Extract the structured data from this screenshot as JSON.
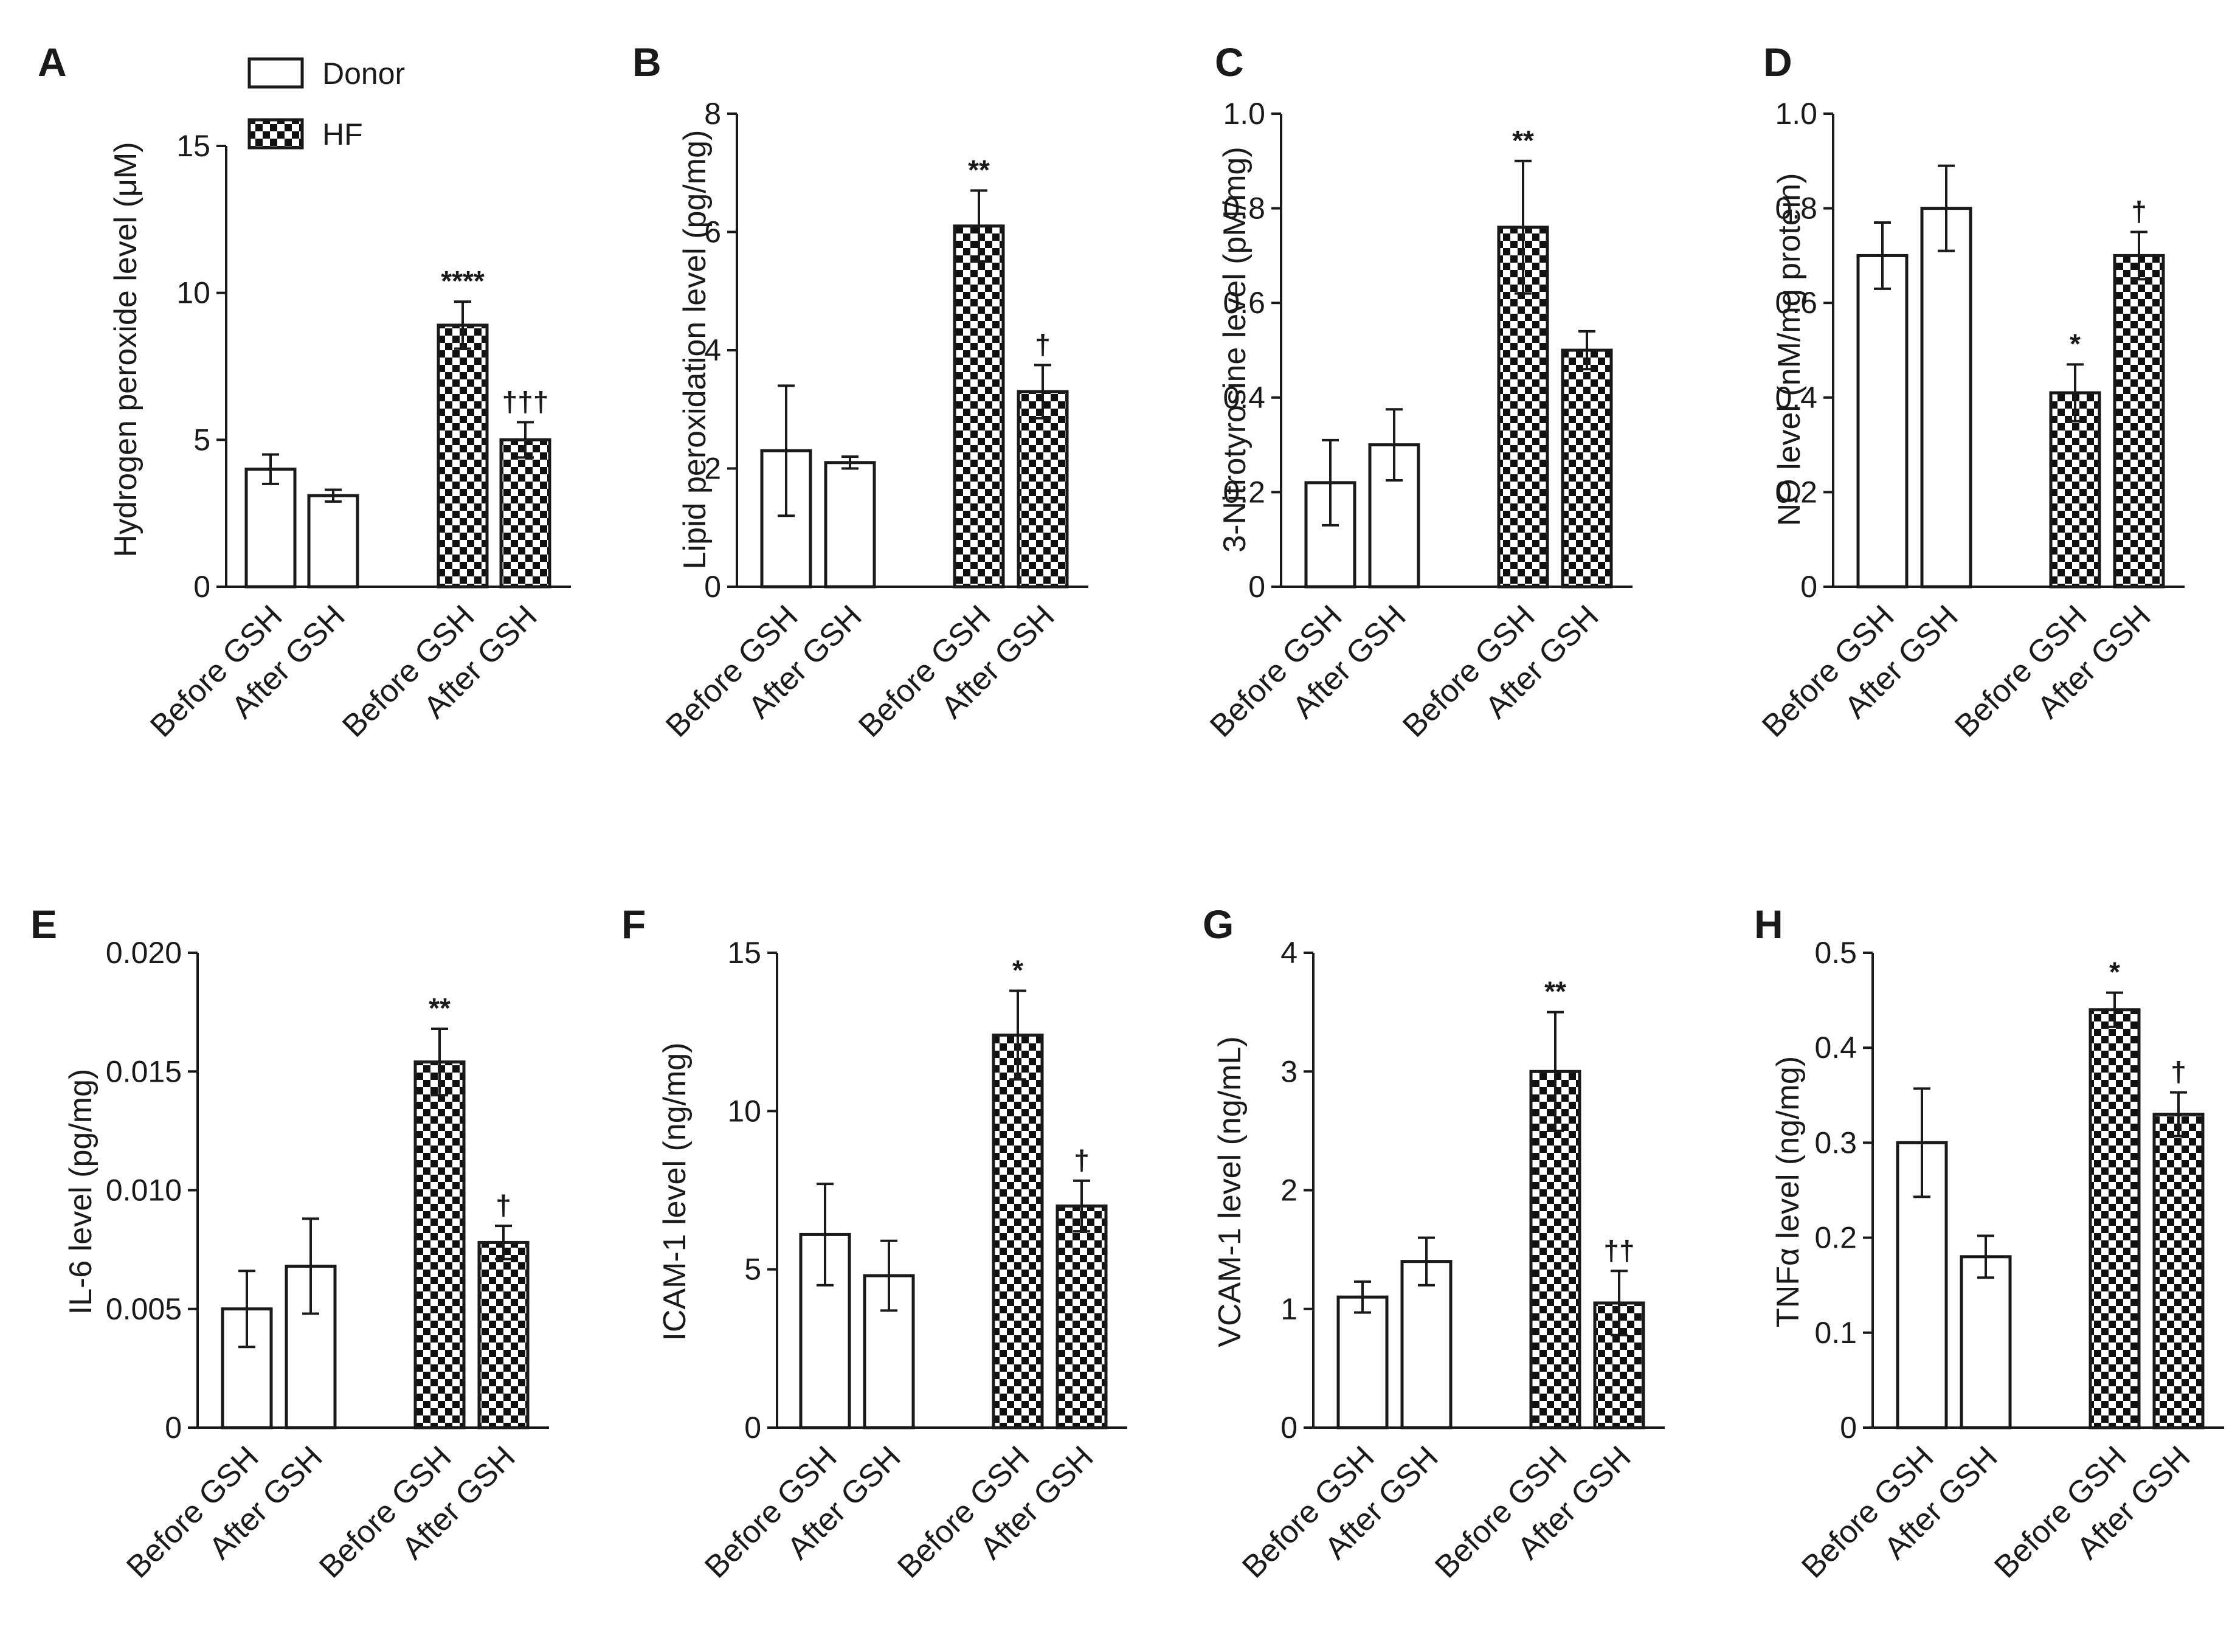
{
  "colors": {
    "donor_fill": "#ffffff",
    "hf_checker_dark": "#111111",
    "hf_checker_light": "#ffffff",
    "ink": "#1a1a1a"
  },
  "legend": {
    "donor_label": "Donor",
    "hf_label": "HF"
  },
  "chart_data": [
    {
      "panel": "A",
      "type": "bar",
      "ylabel": "Hydrogen peroxide level (μM)",
      "ylim": [
        0,
        15
      ],
      "yticks": [
        "0",
        "5",
        "10",
        "15"
      ],
      "categories": [
        "Before GSH",
        "After GSH",
        "Before GSH",
        "After GSH"
      ],
      "groups": [
        "Donor",
        "Donor",
        "HF",
        "HF"
      ],
      "values": [
        4.0,
        3.1,
        8.9,
        5.0
      ],
      "errors": [
        0.5,
        0.2,
        0.8,
        0.6
      ],
      "annotations": [
        "",
        "",
        "****",
        "†††"
      ]
    },
    {
      "panel": "B",
      "type": "bar",
      "ylabel": "Lipid peroxidation level (pg/mg)",
      "ylim": [
        0,
        8
      ],
      "yticks": [
        "0",
        "2",
        "4",
        "6",
        "8"
      ],
      "categories": [
        "Before GSH",
        "After GSH",
        "Before GSH",
        "After GSH"
      ],
      "groups": [
        "Donor",
        "Donor",
        "HF",
        "HF"
      ],
      "values": [
        2.3,
        2.1,
        6.1,
        3.3
      ],
      "errors": [
        1.1,
        0.1,
        0.6,
        0.45
      ],
      "annotations": [
        "",
        "",
        "**",
        "†"
      ]
    },
    {
      "panel": "C",
      "type": "bar",
      "ylabel": "3-Nitrotyrosine level (pM/mg)",
      "ylim": [
        0,
        1.0
      ],
      "yticks": [
        "0",
        "0.2",
        "0.4",
        "0.6",
        "0.8",
        "1.0"
      ],
      "categories": [
        "Before GSH",
        "After GSH",
        "Before GSH",
        "After GSH"
      ],
      "groups": [
        "Donor",
        "Donor",
        "HF",
        "HF"
      ],
      "values": [
        0.22,
        0.3,
        0.76,
        0.5
      ],
      "errors": [
        0.09,
        0.075,
        0.14,
        0.04
      ],
      "annotations": [
        "",
        "",
        "**",
        ""
      ]
    },
    {
      "panel": "D",
      "type": "bar",
      "ylabel": "NO level (nM/mg protein)",
      "ylim": [
        0,
        1.0
      ],
      "yticks": [
        "0",
        "0.2",
        "0.4",
        "0.6",
        "0.8",
        "1.0"
      ],
      "categories": [
        "Before GSH",
        "After GSH",
        "Before GSH",
        "After GSH"
      ],
      "groups": [
        "Donor",
        "Donor",
        "HF",
        "HF"
      ],
      "values": [
        0.7,
        0.8,
        0.41,
        0.7
      ],
      "errors": [
        0.07,
        0.09,
        0.06,
        0.05
      ],
      "annotations": [
        "",
        "",
        "*",
        "†"
      ]
    },
    {
      "panel": "E",
      "type": "bar",
      "ylabel": "IL-6 level (pg/mg)",
      "ylim": [
        0,
        0.02
      ],
      "yticks": [
        "0",
        "0.005",
        "0.010",
        "0.015",
        "0.020"
      ],
      "categories": [
        "Before GSH",
        "After GSH",
        "Before GSH",
        "After GSH"
      ],
      "groups": [
        "Donor",
        "Donor",
        "HF",
        "HF"
      ],
      "values": [
        0.005,
        0.0068,
        0.0154,
        0.0078
      ],
      "errors": [
        0.0016,
        0.002,
        0.0014,
        0.0007
      ],
      "annotations": [
        "",
        "",
        "**",
        "†"
      ]
    },
    {
      "panel": "F",
      "type": "bar",
      "ylabel": "ICAM-1 level (ng/mg)",
      "ylim": [
        0,
        15
      ],
      "yticks": [
        "0",
        "5",
        "10",
        "15"
      ],
      "categories": [
        "Before GSH",
        "After GSH",
        "Before GSH",
        "After GSH"
      ],
      "groups": [
        "Donor",
        "Donor",
        "HF",
        "HF"
      ],
      "values": [
        6.1,
        4.8,
        12.4,
        7.0
      ],
      "errors": [
        1.6,
        1.1,
        1.4,
        0.8
      ],
      "annotations": [
        "",
        "",
        "*",
        "†"
      ]
    },
    {
      "panel": "G",
      "type": "bar",
      "ylabel": "VCAM-1 level (ng/mL)",
      "ylim": [
        0,
        4
      ],
      "yticks": [
        "0",
        "1",
        "2",
        "3",
        "4"
      ],
      "categories": [
        "Before GSH",
        "After GSH",
        "Before GSH",
        "After GSH"
      ],
      "groups": [
        "Donor",
        "Donor",
        "HF",
        "HF"
      ],
      "values": [
        1.1,
        1.4,
        3.0,
        1.05
      ],
      "errors": [
        0.13,
        0.2,
        0.5,
        0.27
      ],
      "annotations": [
        "",
        "",
        "**",
        "††"
      ]
    },
    {
      "panel": "H",
      "type": "bar",
      "ylabel": "TNFα level (ng/mg)",
      "ylim": [
        0,
        0.5
      ],
      "yticks": [
        "0",
        "0.1",
        "0.2",
        "0.3",
        "0.4",
        "0.5"
      ],
      "categories": [
        "Before GSH",
        "After GSH",
        "Before GSH",
        "After GSH"
      ],
      "groups": [
        "Donor",
        "Donor",
        "HF",
        "HF"
      ],
      "values": [
        0.3,
        0.18,
        0.44,
        0.33
      ],
      "errors": [
        0.057,
        0.022,
        0.018,
        0.023
      ],
      "annotations": [
        "",
        "",
        "*",
        "†"
      ]
    }
  ]
}
